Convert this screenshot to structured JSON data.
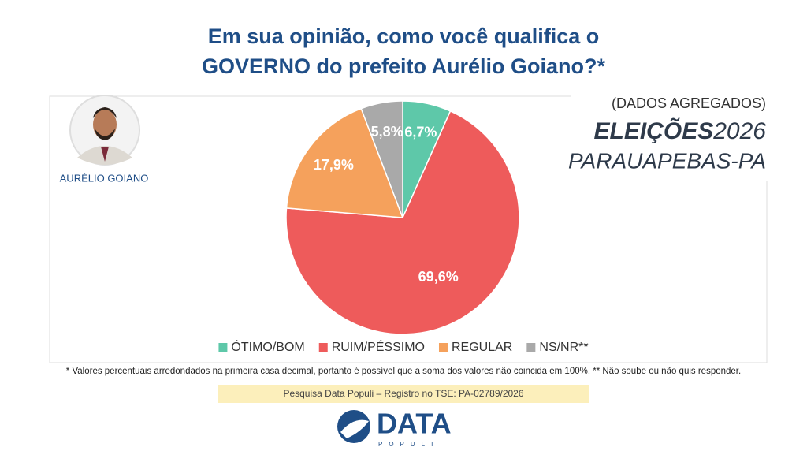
{
  "chart_data": {
    "type": "pie",
    "title": [
      "Em sua opinião, como você qualifica o",
      "GOVERNO do prefeito Aurélio Goiano?*"
    ],
    "categories": [
      "ÓTIMO/BOM",
      "RUIM/PÉSSIMO",
      "REGULAR",
      "NS/NR**"
    ],
    "values": [
      6.7,
      69.6,
      17.9,
      5.8
    ],
    "value_labels": [
      "6,7%",
      "69,6%",
      "17,9%",
      "5,8%"
    ],
    "colors": [
      "#5ec8a9",
      "#ee5b5b",
      "#f5a15c",
      "#a9a9a9"
    ],
    "legend": "bottom"
  },
  "candidate": "AURÉLIO GOIANO",
  "badge": {
    "subtitle": "(DADOS AGREGADOS)",
    "brand": "ELEIÇÕES",
    "year": "2026",
    "city": "PARAUAPEBAS-PA"
  },
  "footnote": "* Valores percentuais arredondados na primeira casa decimal, portanto é possível que a soma dos valores não coincida em 100%. ** Não soube ou não quis responder.",
  "source": "Pesquisa Data Populi – Registro no TSE: PA-02789/2026",
  "logo": {
    "name": "DATA",
    "tagline": "POPULI"
  }
}
